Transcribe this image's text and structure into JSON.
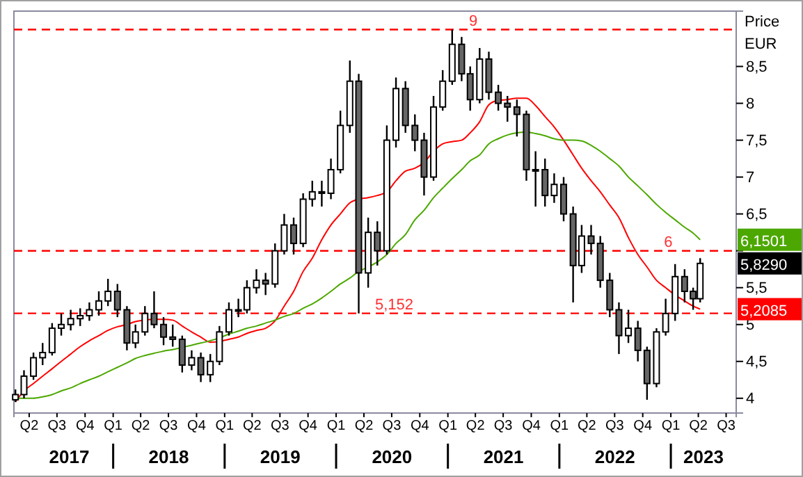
{
  "chart_data": {
    "type": "candlestick",
    "ylabel": "Price EUR",
    "xlim": [
      "2017-02-10",
      "2023-08-03"
    ],
    "ylim": [
      3.8,
      9.25
    ],
    "yticks": [
      4,
      {
        "value": 4.5,
        "label": "4,5"
      },
      5,
      {
        "value": 5.5,
        "label": "5,5"
      },
      {
        "value": 6,
        "label": null
      },
      {
        "value": 6.5,
        "label": "6,5"
      },
      7,
      {
        "value": 7.5,
        "label": "7,5"
      },
      8,
      {
        "value": 8.5,
        "label": "8,5"
      }
    ],
    "xticks": [
      {
        "value": "2017-04-01",
        "label": "Q2"
      },
      {
        "value": "2017-07-01",
        "label": "Q3"
      },
      {
        "value": "2017-10-01",
        "label": "Q4"
      },
      {
        "value": "2018-01-01",
        "label": "Q1"
      },
      {
        "value": "2018-04-01",
        "label": "Q2"
      },
      {
        "value": "2018-07-01",
        "label": "Q3"
      },
      {
        "value": "2018-10-01",
        "label": "Q4"
      },
      {
        "value": "2019-01-01",
        "label": "Q1"
      },
      {
        "value": "2019-04-01",
        "label": "Q2"
      },
      {
        "value": "2019-07-01",
        "label": "Q3"
      },
      {
        "value": "2019-10-01",
        "label": "Q4"
      },
      {
        "value": "2020-01-01",
        "label": "Q1"
      },
      {
        "value": "2020-04-01",
        "label": "Q2"
      },
      {
        "value": "2020-07-01",
        "label": "Q3"
      },
      {
        "value": "2020-10-01",
        "label": "Q4"
      },
      {
        "value": "2021-01-01",
        "label": "Q1"
      },
      {
        "value": "2021-04-01",
        "label": "Q2"
      },
      {
        "value": "2021-07-01",
        "label": "Q3"
      },
      {
        "value": "2021-10-01",
        "label": "Q4"
      },
      {
        "value": "2022-01-01",
        "label": "Q1"
      },
      {
        "value": "2022-04-01",
        "label": "Q2"
      },
      {
        "value": "2022-07-01",
        "label": "Q3"
      },
      {
        "value": "2022-10-01",
        "label": "Q4"
      },
      {
        "value": "2023-01-01",
        "label": "Q1"
      },
      {
        "value": "2023-04-01",
        "label": "Q2"
      },
      {
        "value": "2023-07-01",
        "label": "Q3"
      }
    ],
    "x2lim": [
      "2017-02-10",
      "2023-08-03"
    ],
    "x2ticks": [
      {
        "value": "2017-08-10",
        "label": "2017"
      },
      {
        "value": "2018-01-01",
        "label": null
      },
      {
        "value": "2018-07-02",
        "label": "2018"
      },
      {
        "value": "2019-01-01",
        "label": null
      },
      {
        "value": "2019-07-02",
        "label": "2019"
      },
      {
        "value": "2020-01-01",
        "label": null
      },
      {
        "value": "2020-07-02",
        "label": "2020"
      },
      {
        "value": "2021-01-01",
        "label": null
      },
      {
        "value": "2021-07-02",
        "label": "2021"
      },
      {
        "value": "2022-01-01",
        "label": null
      },
      {
        "value": "2022-07-02",
        "label": "2022"
      },
      {
        "value": "2023-01-01",
        "label": null
      },
      {
        "value": "2023-04-18",
        "label": "2023"
      }
    ],
    "ref_lines": [
      {
        "axis": "y",
        "value": 9,
        "label": "9",
        "color": "#ff0000",
        "line_style": "dashed"
      },
      {
        "axis": "y",
        "value": 6,
        "label": "6",
        "color": "#ff0000",
        "line_style": "dashed"
      },
      {
        "axis": "y",
        "value": 5.152,
        "label": "5,152",
        "color": "#ff0000",
        "line_style": "dashed"
      }
    ],
    "x": [
      "2017-02-15",
      "2017-03-15",
      "2017-04-15",
      "2017-05-15",
      "2017-06-15",
      "2017-07-15",
      "2017-08-15",
      "2017-09-15",
      "2017-10-15",
      "2017-11-15",
      "2017-12-15",
      "2018-01-15",
      "2018-02-15",
      "2018-03-15",
      "2018-04-15",
      "2018-05-15",
      "2018-06-15",
      "2018-07-15",
      "2018-08-15",
      "2018-09-15",
      "2018-10-15",
      "2018-11-15",
      "2018-12-15",
      "2019-01-15",
      "2019-02-15",
      "2019-03-15",
      "2019-04-15",
      "2019-05-15",
      "2019-06-15",
      "2019-07-15",
      "2019-08-15",
      "2019-09-15",
      "2019-10-15",
      "2019-11-15",
      "2019-12-15",
      "2020-01-15",
      "2020-02-15",
      "2020-03-15",
      "2020-04-15",
      "2020-05-15",
      "2020-06-15",
      "2020-07-15",
      "2020-08-15",
      "2020-09-15",
      "2020-10-15",
      "2020-11-15",
      "2020-12-15",
      "2021-01-15",
      "2021-02-15",
      "2021-03-15",
      "2021-04-15",
      "2021-05-15",
      "2021-06-15",
      "2021-07-15",
      "2021-08-15",
      "2021-09-15",
      "2021-10-15",
      "2021-11-15",
      "2021-12-15",
      "2022-01-15",
      "2022-02-15",
      "2022-03-15",
      "2022-04-15",
      "2022-05-15",
      "2022-06-15",
      "2022-07-15",
      "2022-08-15",
      "2022-09-15",
      "2022-10-15",
      "2022-11-15",
      "2022-12-15",
      "2023-01-15",
      "2023-02-15",
      "2023-03-15",
      "2023-04-07"
    ],
    "series": [
      {
        "color": "#000000",
        "ohlc": [
          [
            3.98,
            4.12,
            3.95,
            4.05
          ],
          [
            4.05,
            4.38,
            4.0,
            4.3
          ],
          [
            4.3,
            4.62,
            4.25,
            4.55
          ],
          [
            4.55,
            4.75,
            4.45,
            4.62
          ],
          [
            4.62,
            5.02,
            4.58,
            4.95
          ],
          [
            4.95,
            5.15,
            4.85,
            5.0
          ],
          [
            5.0,
            5.2,
            4.92,
            5.08
          ],
          [
            5.08,
            5.22,
            4.98,
            5.12
          ],
          [
            5.12,
            5.3,
            5.05,
            5.2
          ],
          [
            5.2,
            5.45,
            5.12,
            5.32
          ],
          [
            5.32,
            5.62,
            5.25,
            5.45
          ],
          [
            5.45,
            5.55,
            5.1,
            5.2
          ],
          [
            5.2,
            5.25,
            4.65,
            4.75
          ],
          [
            4.75,
            5.0,
            4.68,
            4.9
          ],
          [
            4.9,
            5.25,
            4.85,
            5.15
          ],
          [
            5.15,
            5.45,
            4.95,
            5.0
          ],
          [
            5.0,
            5.1,
            4.72,
            4.83
          ],
          [
            4.83,
            5.0,
            4.7,
            4.8
          ],
          [
            4.8,
            4.85,
            4.35,
            4.45
          ],
          [
            4.45,
            4.65,
            4.38,
            4.55
          ],
          [
            4.55,
            4.62,
            4.22,
            4.32
          ],
          [
            4.32,
            4.6,
            4.22,
            4.5
          ],
          [
            4.5,
            4.98,
            4.45,
            4.9
          ],
          [
            4.9,
            5.3,
            4.85,
            5.2
          ],
          [
            5.2,
            5.35,
            5.1,
            5.2
          ],
          [
            5.2,
            5.6,
            5.15,
            5.5
          ],
          [
            5.5,
            5.75,
            5.42,
            5.6
          ],
          [
            5.6,
            5.7,
            5.4,
            5.55
          ],
          [
            5.55,
            6.1,
            5.5,
            6.0
          ],
          [
            6.0,
            6.5,
            5.95,
            6.35
          ],
          [
            6.35,
            6.45,
            5.95,
            6.1
          ],
          [
            6.1,
            6.78,
            6.05,
            6.7
          ],
          [
            6.7,
            6.95,
            6.6,
            6.8
          ],
          [
            6.8,
            6.95,
            6.6,
            6.78
          ],
          [
            6.78,
            7.25,
            6.7,
            7.1
          ],
          [
            7.1,
            7.9,
            7.05,
            7.7
          ],
          [
            7.7,
            8.58,
            7.6,
            8.3
          ],
          [
            8.3,
            8.4,
            5.15,
            5.7
          ],
          [
            5.7,
            6.45,
            5.5,
            6.25
          ],
          [
            6.25,
            6.4,
            5.8,
            6.0
          ],
          [
            6.0,
            7.7,
            5.95,
            7.5
          ],
          [
            7.5,
            8.35,
            7.4,
            8.2
          ],
          [
            8.2,
            8.3,
            7.6,
            7.7
          ],
          [
            7.7,
            7.85,
            7.35,
            7.5
          ],
          [
            7.5,
            7.6,
            6.75,
            7.0
          ],
          [
            7.0,
            8.1,
            6.95,
            7.95
          ],
          [
            7.95,
            8.45,
            7.9,
            8.3
          ],
          [
            8.3,
            9.0,
            8.25,
            8.8
          ],
          [
            8.8,
            8.9,
            8.3,
            8.4
          ],
          [
            8.4,
            8.5,
            7.9,
            8.05
          ],
          [
            8.05,
            8.75,
            8.0,
            8.6
          ],
          [
            8.6,
            8.7,
            8.05,
            8.15
          ],
          [
            8.15,
            8.25,
            7.9,
            8.0
          ],
          [
            8.0,
            8.1,
            7.75,
            7.95
          ],
          [
            7.95,
            8.05,
            7.55,
            7.85
          ],
          [
            7.85,
            7.9,
            6.95,
            7.1
          ],
          [
            7.1,
            7.35,
            6.6,
            7.1
          ],
          [
            7.1,
            7.25,
            6.6,
            6.75
          ],
          [
            6.75,
            7.05,
            6.65,
            6.9
          ],
          [
            6.9,
            7.0,
            6.4,
            6.5
          ],
          [
            6.5,
            6.6,
            5.3,
            5.8
          ],
          [
            5.8,
            6.35,
            5.7,
            6.2
          ],
          [
            6.2,
            6.35,
            5.95,
            6.1
          ],
          [
            6.1,
            6.2,
            5.5,
            5.6
          ],
          [
            5.6,
            5.7,
            5.1,
            5.2
          ],
          [
            5.2,
            5.3,
            4.6,
            4.85
          ],
          [
            4.85,
            5.2,
            4.75,
            4.95
          ],
          [
            4.95,
            5.05,
            4.5,
            4.65
          ],
          [
            4.65,
            4.7,
            3.98,
            4.2
          ],
          [
            4.2,
            4.95,
            4.15,
            4.9
          ],
          [
            4.9,
            5.35,
            4.85,
            5.15
          ],
          [
            5.15,
            5.82,
            5.05,
            5.65
          ],
          [
            5.65,
            5.75,
            5.3,
            5.45
          ],
          [
            5.45,
            5.5,
            5.2,
            5.35
          ],
          [
            5.35,
            5.9,
            5.3,
            5.829
          ]
        ]
      },
      {
        "type": "line",
        "color": "#ff0000",
        "values": [
          3.95,
          4.1,
          4.2,
          4.3,
          4.4,
          4.5,
          4.6,
          4.7,
          4.78,
          4.85,
          4.92,
          4.97,
          5.0,
          5.04,
          5.06,
          5.07,
          5.07,
          5.06,
          4.98,
          4.9,
          4.83,
          4.76,
          4.77,
          4.8,
          4.83,
          4.88,
          4.92,
          4.95,
          5.05,
          5.25,
          5.45,
          5.72,
          5.9,
          6.15,
          6.35,
          6.5,
          6.65,
          6.7,
          6.72,
          6.75,
          6.8,
          6.95,
          7.08,
          7.12,
          7.2,
          7.35,
          7.45,
          7.48,
          7.5,
          7.6,
          7.75,
          7.98,
          8.04,
          8.05,
          8.07,
          8.07,
          7.97,
          7.82,
          7.68,
          7.5,
          7.3,
          7.12,
          6.95,
          6.8,
          6.62,
          6.45,
          6.18,
          5.95,
          5.78,
          5.6,
          5.5,
          5.4,
          5.32,
          5.25,
          5.2085
        ]
      },
      {
        "type": "line",
        "color": "#4ca800",
        "values": [
          4.0,
          4.0,
          4.0,
          4.02,
          4.05,
          4.1,
          4.14,
          4.2,
          4.25,
          4.3,
          4.36,
          4.42,
          4.48,
          4.54,
          4.58,
          4.61,
          4.64,
          4.66,
          4.69,
          4.72,
          4.75,
          4.78,
          4.82,
          4.87,
          4.91,
          4.95,
          4.98,
          5.02,
          5.06,
          5.11,
          5.15,
          5.22,
          5.28,
          5.36,
          5.45,
          5.55,
          5.63,
          5.72,
          5.78,
          5.85,
          5.95,
          6.1,
          6.22,
          6.42,
          6.55,
          6.72,
          6.85,
          6.98,
          7.1,
          7.22,
          7.3,
          7.45,
          7.52,
          7.57,
          7.6,
          7.61,
          7.59,
          7.56,
          7.52,
          7.5,
          7.5,
          7.49,
          7.43,
          7.35,
          7.25,
          7.15,
          7.0,
          6.88,
          6.76,
          6.63,
          6.52,
          6.42,
          6.32,
          6.24,
          6.1501
        ]
      }
    ],
    "annotations": [
      {
        "text": "6,1501",
        "x": "2023-04-07",
        "y": 6.1501
      },
      {
        "text": "5,8290",
        "x": "2023-04-07",
        "y": 5.829
      },
      {
        "text": "5,2085",
        "x": "2023-04-07",
        "y": 5.2085
      }
    ]
  }
}
